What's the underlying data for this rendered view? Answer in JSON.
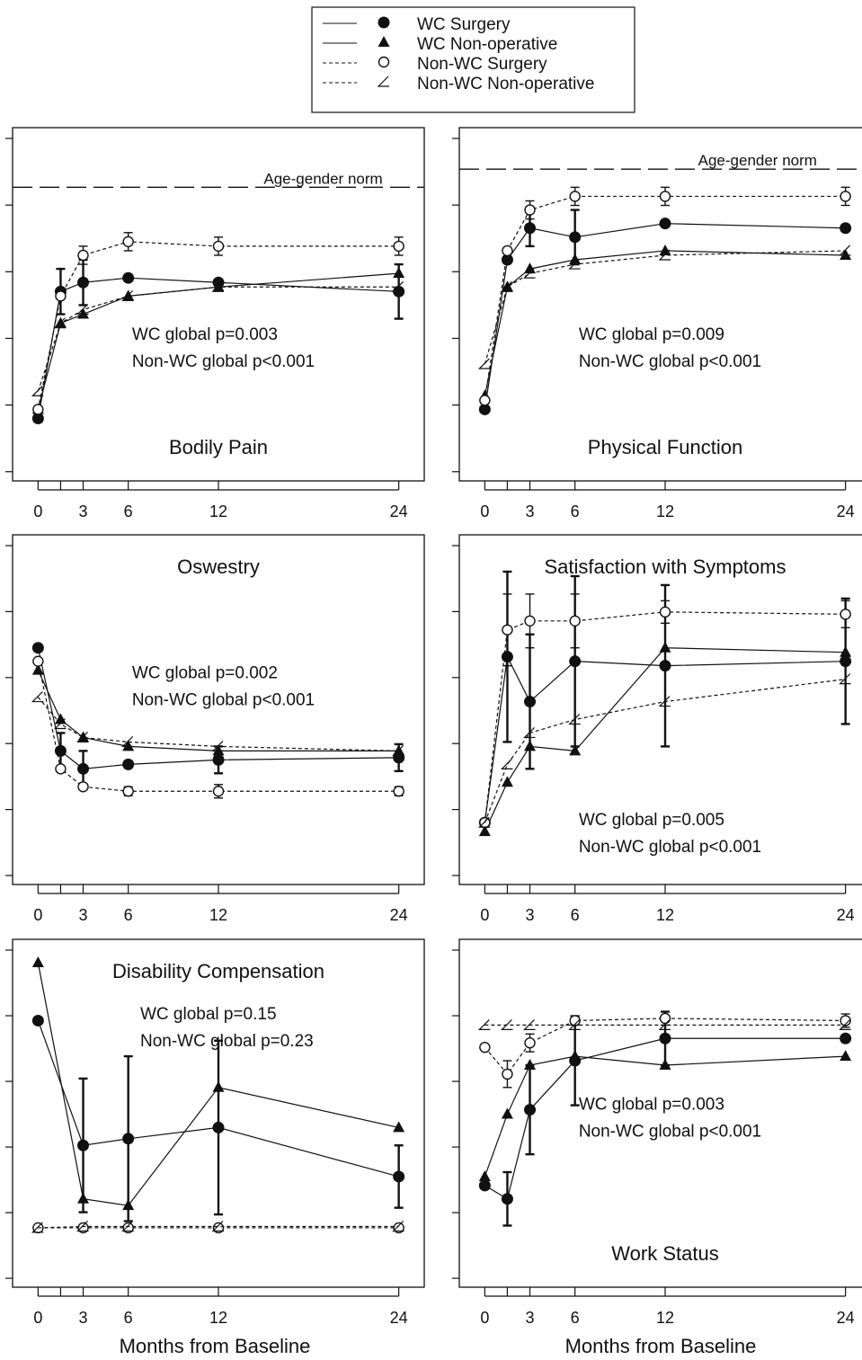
{
  "legend": [
    {
      "label": "WC Surgery",
      "marker": "filled-circle",
      "line": "solid"
    },
    {
      "label": "WC Non-operative",
      "marker": "filled-triangle",
      "line": "solid"
    },
    {
      "label": "Non-WC Surgery",
      "marker": "open-circle",
      "line": "dashed"
    },
    {
      "label": "Non-WC Non-operative",
      "marker": "open-triangle",
      "line": "dashed"
    }
  ],
  "x_axis_label": "Months from Baseline",
  "chart_data": [
    {
      "type": "line",
      "title": "Bodily Pain",
      "x_ticks": [
        0,
        3,
        6,
        12,
        24
      ],
      "xlim": [
        -0.5,
        24.5
      ],
      "ylim": [
        -1,
        6
      ],
      "reference_line": {
        "label": "Age-gender norm",
        "y": 5.2
      },
      "annotations": [
        "WC global p=0.003",
        "Non-WC global p<0.001"
      ],
      "series": [
        {
          "name": "WC Surgery",
          "x": [
            0,
            1.5,
            3,
            6,
            12,
            24
          ],
          "y": [
            0.1,
            2.9,
            3.1,
            3.2,
            3.1,
            2.9
          ],
          "err": [
            0,
            0.5,
            0.5,
            0,
            0,
            0.6
          ]
        },
        {
          "name": "WC Non-operative",
          "x": [
            0,
            1.5,
            3,
            6,
            12,
            24
          ],
          "y": [
            0.3,
            2.2,
            2.4,
            2.8,
            3.0,
            3.3
          ]
        },
        {
          "name": "Non-WC Surgery",
          "x": [
            0,
            1.5,
            3,
            6,
            12,
            24
          ],
          "y": [
            0.3,
            2.8,
            3.7,
            4.0,
            3.9,
            3.9
          ],
          "err": [
            0,
            0,
            0.2,
            0.2,
            0.2,
            0.2
          ]
        },
        {
          "name": "Non-WC Non-operative",
          "x": [
            0,
            1.5,
            3,
            6,
            12,
            24
          ],
          "y": [
            0.7,
            2.2,
            2.5,
            2.8,
            3.0,
            3.0
          ]
        }
      ]
    },
    {
      "type": "line",
      "title": "Physical Function",
      "x_ticks": [
        0,
        3,
        6,
        12,
        24
      ],
      "xlim": [
        -0.5,
        24.5
      ],
      "ylim": [
        -1,
        6
      ],
      "reference_line": {
        "label": "Age-gender norm",
        "y": 5.6
      },
      "annotations": [
        "WC global p=0.009",
        "Non-WC global p<0.001"
      ],
      "series": [
        {
          "name": "WC Surgery",
          "x": [
            0,
            1.5,
            3,
            6,
            12,
            24
          ],
          "y": [
            0.3,
            3.6,
            4.3,
            4.1,
            4.4,
            4.3
          ],
          "err": [
            0,
            0,
            0.4,
            0.6,
            0,
            0
          ]
        },
        {
          "name": "WC Non-operative",
          "x": [
            0,
            1.5,
            3,
            6,
            12,
            24
          ],
          "y": [
            0.6,
            3.0,
            3.4,
            3.6,
            3.8,
            3.7
          ]
        },
        {
          "name": "Non-WC Surgery",
          "x": [
            0,
            1.5,
            3,
            6,
            12,
            24
          ],
          "y": [
            0.5,
            3.8,
            4.7,
            5.0,
            5.0,
            5.0
          ],
          "err": [
            0,
            0,
            0.2,
            0.2,
            0.2,
            0.2
          ]
        },
        {
          "name": "Non-WC Non-operative",
          "x": [
            0,
            1.5,
            3,
            6,
            12,
            24
          ],
          "y": [
            1.3,
            3.0,
            3.3,
            3.5,
            3.7,
            3.8
          ]
        }
      ]
    },
    {
      "type": "line",
      "title": "Oswestry",
      "x_ticks": [
        0,
        3,
        6,
        12,
        24
      ],
      "xlim": [
        -0.5,
        24.5
      ],
      "ylim": [
        -1,
        6
      ],
      "annotations": [
        "WC global p=0.002",
        "Non-WC global p<0.001"
      ],
      "series": [
        {
          "name": "WC Surgery",
          "x": [
            0,
            1.5,
            3,
            6,
            12,
            24
          ],
          "y": [
            4.0,
            1.7,
            1.3,
            1.4,
            1.5,
            1.55
          ],
          "err": [
            0,
            0.4,
            0.4,
            0,
            0.3,
            0.3
          ]
        },
        {
          "name": "WC Non-operative",
          "x": [
            0,
            1.5,
            3,
            6,
            12,
            24
          ],
          "y": [
            3.5,
            2.4,
            2.0,
            1.8,
            1.7,
            1.7
          ]
        },
        {
          "name": "Non-WC Surgery",
          "x": [
            0,
            1.5,
            3,
            6,
            12,
            24
          ],
          "y": [
            3.7,
            1.3,
            0.9,
            0.8,
            0.8,
            0.8
          ],
          "err": [
            0,
            0,
            0,
            0.1,
            0.15,
            0.1
          ]
        },
        {
          "name": "Non-WC Non-operative",
          "x": [
            0,
            1.5,
            3,
            6,
            12,
            24
          ],
          "y": [
            2.9,
            2.3,
            2.0,
            1.9,
            1.8,
            1.7
          ]
        }
      ]
    },
    {
      "type": "line",
      "title": "Satisfaction with Symptoms",
      "x_ticks": [
        0,
        3,
        6,
        12,
        24
      ],
      "xlim": [
        -0.5,
        24.5
      ],
      "ylim": [
        -1,
        6
      ],
      "annotations": [
        "WC global p=0.005",
        "Non-WC global p<0.001"
      ],
      "series": [
        {
          "name": "WC Surgery",
          "x": [
            0,
            1.5,
            3,
            6,
            12,
            24
          ],
          "y": [
            0.1,
            3.8,
            2.8,
            3.7,
            3.6,
            3.7
          ],
          "err": [
            0,
            1.9,
            1.5,
            1.9,
            1.8,
            1.4
          ]
        },
        {
          "name": "WC Non-operative",
          "x": [
            0,
            1.5,
            3,
            6,
            12,
            24
          ],
          "y": [
            -0.1,
            1.0,
            1.8,
            1.7,
            4.0,
            3.9
          ]
        },
        {
          "name": "Non-WC Surgery",
          "x": [
            0,
            1.5,
            3,
            6,
            12,
            24
          ],
          "y": [
            0.1,
            4.4,
            4.6,
            4.6,
            4.8,
            4.75
          ],
          "err": [
            0,
            0.8,
            0.6,
            0.6,
            0.25,
            0.3
          ]
        },
        {
          "name": "Non-WC Non-operative",
          "x": [
            0,
            1.5,
            3,
            6,
            12,
            24
          ],
          "y": [
            0.1,
            1.4,
            2.1,
            2.4,
            2.8,
            3.3
          ]
        }
      ]
    },
    {
      "type": "line",
      "title": "Disability Compensation",
      "x_ticks": [
        0,
        3,
        6,
        12,
        24
      ],
      "xlim": [
        -0.5,
        24.5
      ],
      "ylim": [
        -1,
        6
      ],
      "annotations": [
        "WC global p=0.15",
        "Non-WC global p=0.23"
      ],
      "series": [
        {
          "name": "WC Surgery",
          "x": [
            0,
            3,
            6,
            12,
            24
          ],
          "y": [
            4.7,
            1.9,
            2.05,
            2.3,
            1.2
          ],
          "err": [
            0,
            1.5,
            1.85,
            1.95,
            0.7
          ]
        },
        {
          "name": "WC Non-operative",
          "x": [
            0,
            3,
            6,
            12,
            24
          ],
          "y": [
            6.0,
            0.7,
            0.55,
            3.2,
            2.3
          ]
        },
        {
          "name": "Non-WC Surgery",
          "x": [
            0,
            3,
            6,
            12,
            24
          ],
          "y": [
            0.05,
            0.05,
            0.05,
            0.05,
            0.05
          ],
          "err": [
            0,
            0.05,
            0.05,
            0.05,
            0.05
          ]
        },
        {
          "name": "Non-WC Non-operative",
          "x": [
            0,
            3,
            6,
            12,
            24
          ],
          "y": [
            0.05,
            0.08,
            0.08,
            0.08,
            0.08
          ]
        }
      ]
    },
    {
      "type": "line",
      "title": "Work Status",
      "x_ticks": [
        0,
        3,
        6,
        12,
        24
      ],
      "xlim": [
        -0.5,
        24.5
      ],
      "ylim": [
        -1,
        6
      ],
      "annotations": [
        "WC global p=0.003",
        "Non-WC global p<0.001"
      ],
      "series": [
        {
          "name": "WC Surgery",
          "x": [
            0,
            1.5,
            3,
            6,
            12,
            24
          ],
          "y": [
            1.0,
            0.7,
            2.7,
            3.8,
            4.3,
            4.3
          ],
          "err": [
            0,
            0.6,
            1.0,
            1.0,
            0.6,
            0
          ]
        },
        {
          "name": "WC Non-operative",
          "x": [
            0,
            1.5,
            3,
            6,
            12,
            24
          ],
          "y": [
            1.2,
            2.6,
            3.7,
            3.9,
            3.7,
            3.9
          ]
        },
        {
          "name": "Non-WC Surgery",
          "x": [
            0,
            1.5,
            3,
            6,
            12,
            24
          ],
          "y": [
            4.1,
            3.5,
            4.2,
            4.7,
            4.75,
            4.7
          ],
          "err": [
            0,
            0.3,
            0.2,
            0.1,
            0.15,
            0.15
          ]
        },
        {
          "name": "Non-WC Non-operative",
          "x": [
            0,
            1.5,
            3,
            6,
            12,
            24
          ],
          "y": [
            4.6,
            4.6,
            4.6,
            4.6,
            4.6,
            4.6
          ]
        }
      ]
    }
  ]
}
